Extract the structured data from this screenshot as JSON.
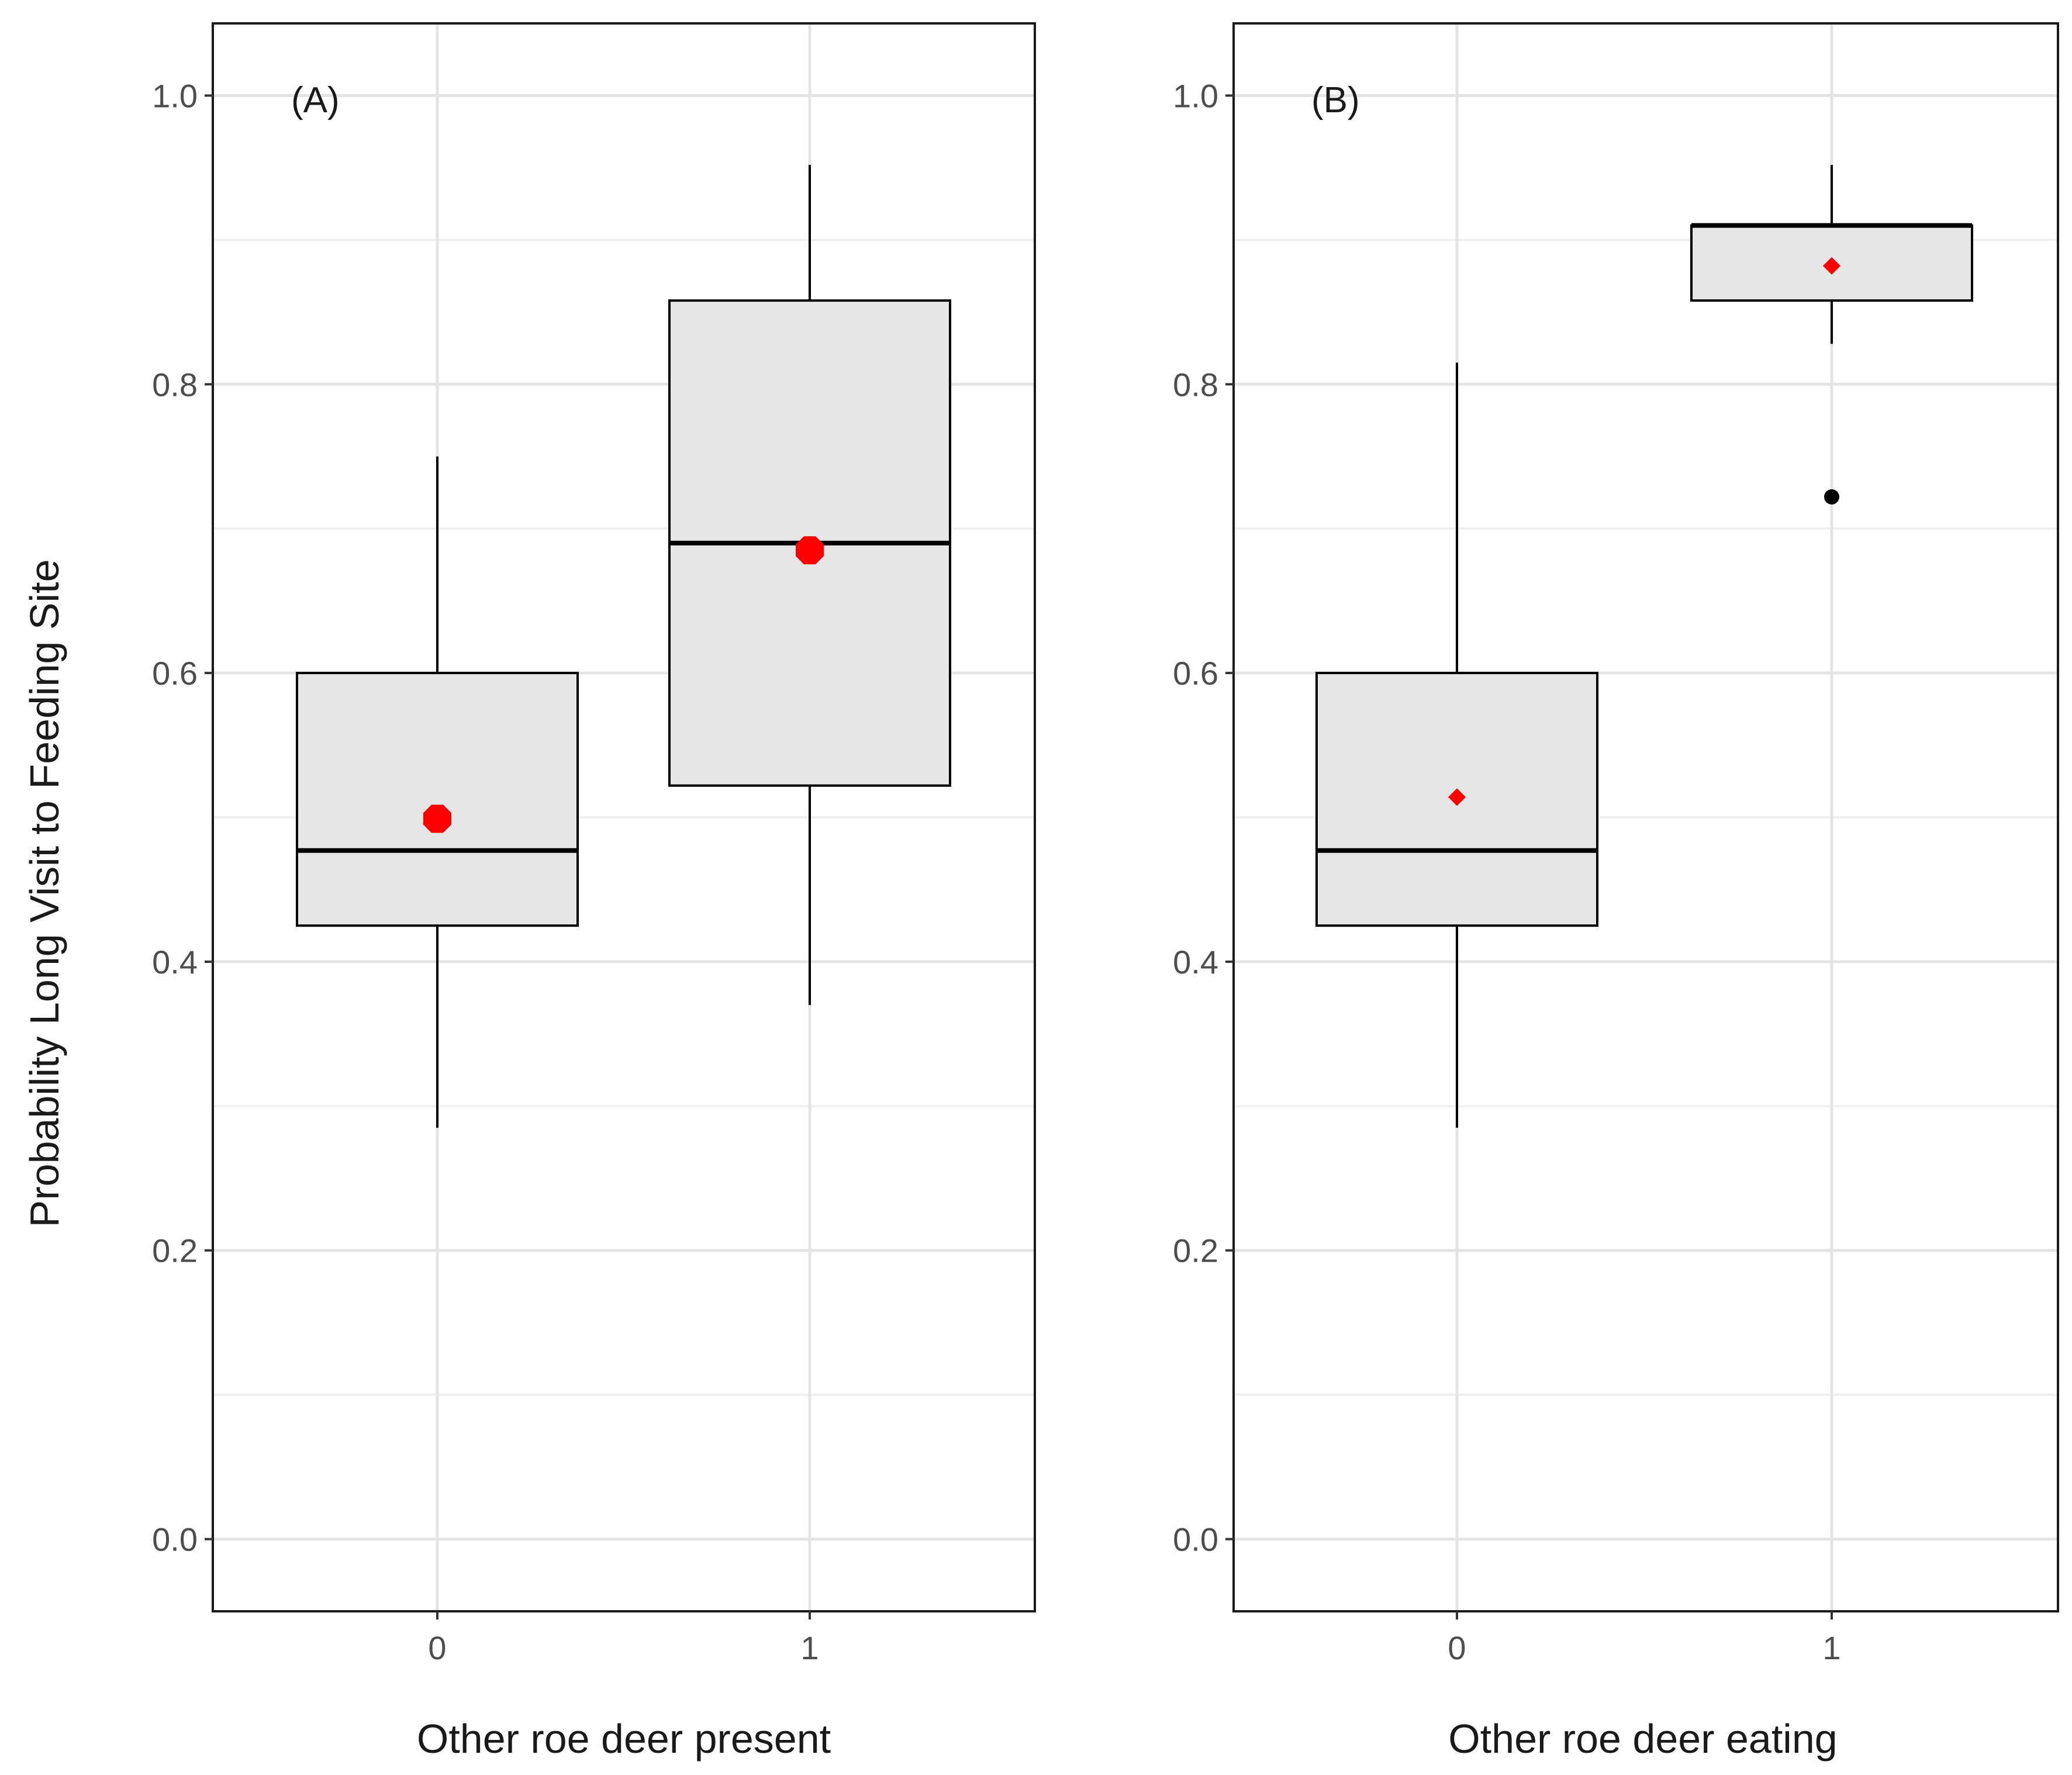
{
  "chart_data": [
    {
      "type": "box",
      "panel_label": "(A)",
      "xlabel": "Other roe deer present",
      "ylabel": "Probability Long Visit to Feeding Site",
      "ylim": [
        -0.05,
        1.05
      ],
      "yticks": [
        0.0,
        0.2,
        0.4,
        0.6,
        0.8,
        1.0
      ],
      "ytick_labels": [
        "0.0",
        "0.2",
        "0.4",
        "0.6",
        "0.8",
        "1.0"
      ],
      "categories": [
        "0",
        "1"
      ],
      "grid": true,
      "boxes": [
        {
          "category": "0",
          "whisker_low": 0.285,
          "q1": 0.425,
          "median": 0.477,
          "q3": 0.6,
          "whisker_high": 0.75,
          "mean": 0.499,
          "outliers": []
        },
        {
          "category": "1",
          "whisker_low": 0.37,
          "q1": 0.522,
          "median": 0.69,
          "q3": 0.858,
          "whisker_high": 0.952,
          "mean": 0.685,
          "outliers": []
        }
      ],
      "mean_marker": {
        "shape": "octagon",
        "size": "large",
        "color": "#ff0000"
      }
    },
    {
      "type": "box",
      "panel_label": "(B)",
      "xlabel": "Other roe deer eating",
      "ylabel": "",
      "ylim": [
        -0.05,
        1.05
      ],
      "yticks": [
        0.0,
        0.2,
        0.4,
        0.6,
        0.8,
        1.0
      ],
      "ytick_labels": [
        "0.0",
        "0.2",
        "0.4",
        "0.6",
        "0.8",
        "1.0"
      ],
      "categories": [
        "0",
        "1"
      ],
      "grid": true,
      "boxes": [
        {
          "category": "0",
          "whisker_low": 0.285,
          "q1": 0.425,
          "median": 0.477,
          "q3": 0.6,
          "whisker_high": 0.815,
          "mean": 0.514,
          "outliers": []
        },
        {
          "category": "1",
          "whisker_low": 0.828,
          "q1": 0.858,
          "median": 0.91,
          "q3": 0.91,
          "whisker_high": 0.952,
          "mean": 0.882,
          "outliers": [
            0.722
          ]
        }
      ],
      "mean_marker": {
        "shape": "diamond",
        "size": "small",
        "color": "#ff0000"
      }
    }
  ]
}
